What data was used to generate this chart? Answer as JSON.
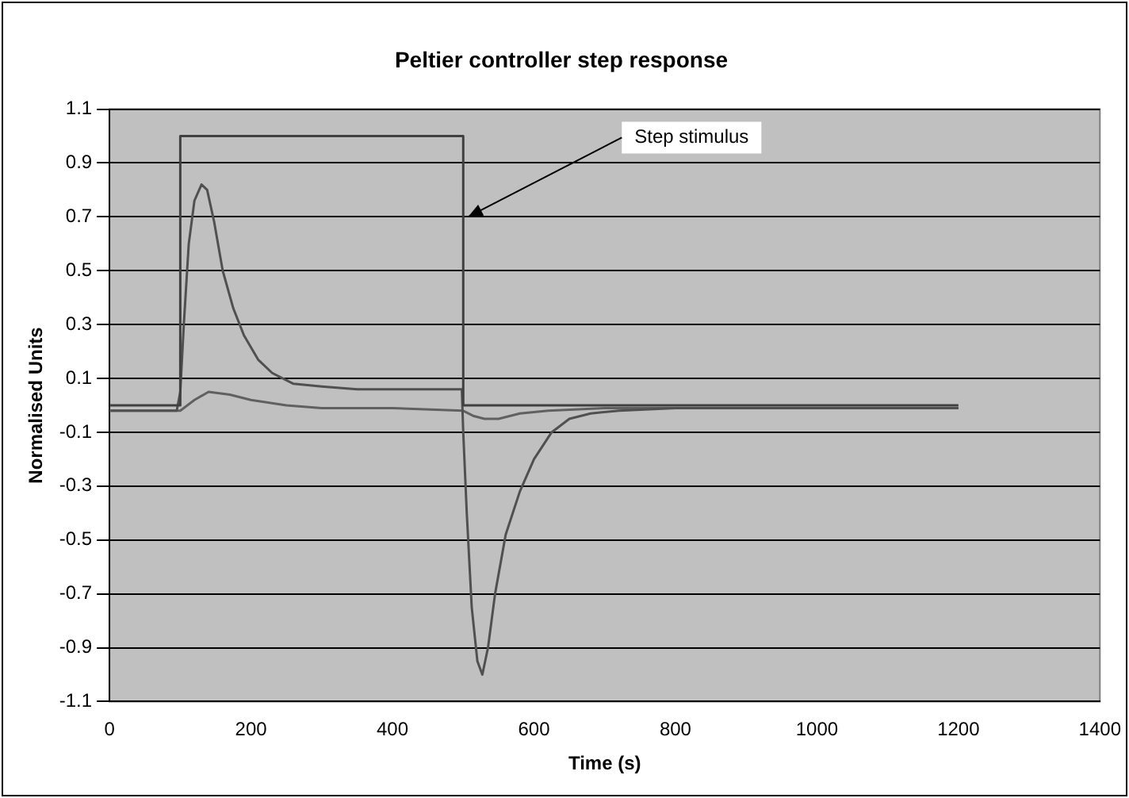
{
  "chart_data": {
    "type": "line",
    "title": "Peltier controller step response",
    "xlabel": "Time (s)",
    "ylabel": "Normalised Units",
    "series": [
      {
        "color": "#404040",
        "x": [
          0,
          100,
          100,
          500,
          500,
          1200
        ],
        "values": [
          0,
          0,
          1,
          1,
          0,
          0
        ]
      },
      {
        "color": "#505050",
        "x": [
          0,
          50,
          95,
          100,
          105,
          112,
          120,
          130,
          138,
          148,
          160,
          175,
          190,
          210,
          230,
          260,
          300,
          350,
          400,
          450,
          498,
          500,
          505,
          512,
          520,
          527,
          535,
          545,
          560,
          580,
          600,
          625,
          650,
          680,
          720,
          800,
          900,
          1000,
          1100,
          1200
        ],
        "values": [
          -0.02,
          -0.02,
          -0.02,
          0.05,
          0.3,
          0.6,
          0.76,
          0.82,
          0.8,
          0.68,
          0.5,
          0.36,
          0.26,
          0.17,
          0.12,
          0.08,
          0.07,
          0.06,
          0.06,
          0.06,
          0.06,
          -0.1,
          -0.4,
          -0.75,
          -0.95,
          -1.0,
          -0.9,
          -0.7,
          -0.48,
          -0.32,
          -0.2,
          -0.1,
          -0.05,
          -0.03,
          -0.02,
          -0.01,
          -0.01,
          -0.01,
          -0.01,
          -0.01
        ]
      },
      {
        "color": "#606060",
        "x": [
          0,
          50,
          100,
          120,
          140,
          170,
          200,
          250,
          300,
          400,
          500,
          515,
          530,
          550,
          580,
          620,
          700,
          800,
          1000,
          1200
        ],
        "values": [
          -0.02,
          -0.02,
          -0.02,
          0.02,
          0.05,
          0.04,
          0.02,
          0.0,
          -0.01,
          -0.01,
          -0.02,
          -0.04,
          -0.05,
          -0.05,
          -0.03,
          -0.02,
          -0.01,
          -0.01,
          -0.01,
          -0.01
        ]
      }
    ],
    "xlim": [
      0,
      1400
    ],
    "xticks": [
      0,
      200,
      400,
      600,
      800,
      1000,
      1200,
      1400
    ],
    "ylim": [
      -1.1,
      1.1
    ],
    "yticks": [
      {
        "value": 1.1,
        "label": "1.1"
      },
      {
        "value": 0.9,
        "label": "0.9"
      },
      {
        "value": 0.7,
        "label": "0.7"
      },
      {
        "value": 0.5,
        "label": "0.5"
      },
      {
        "value": 0.3,
        "label": "0.3"
      },
      {
        "value": 0.1,
        "label": "0.1"
      },
      {
        "value": -0.1,
        "label": "-0.1"
      },
      {
        "value": -0.3,
        "label": "-0.3"
      },
      {
        "value": -0.5,
        "label": "-0.5"
      },
      {
        "value": -0.7,
        "label": "-0.7"
      },
      {
        "value": -0.9,
        "label": "-0.9"
      },
      {
        "value": -1.1,
        "label": "-1.1"
      }
    ],
    "grid": "y",
    "legend": false,
    "marker": "none",
    "line_style": "solid",
    "annotations": [
      {
        "text": "Step stimulus",
        "x": 500,
        "y": 0.7
      }
    ]
  }
}
